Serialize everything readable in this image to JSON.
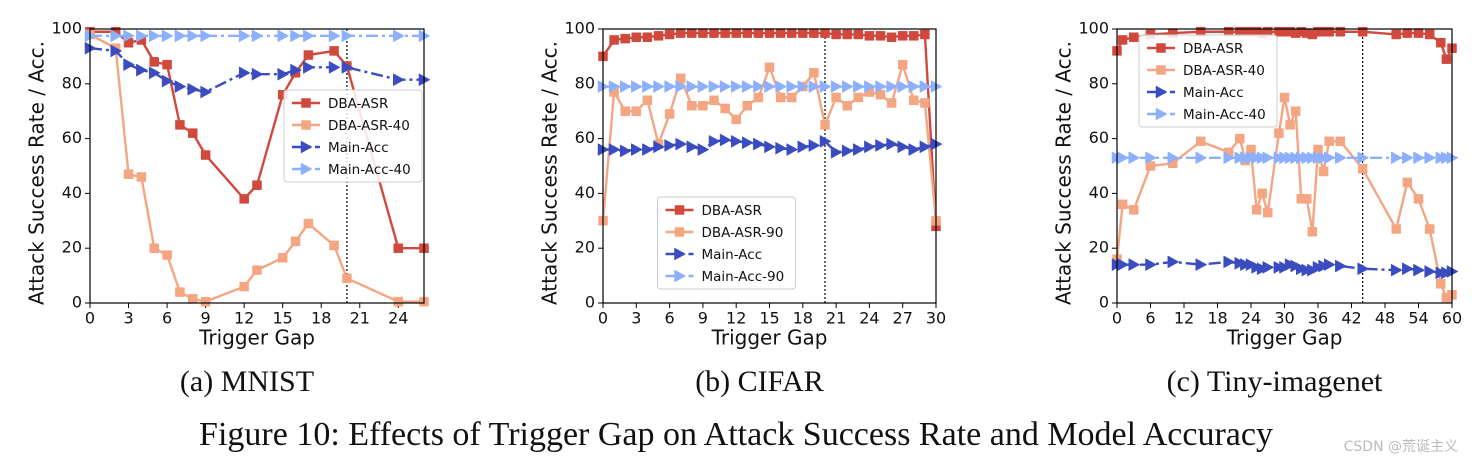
{
  "chart_data": [
    {
      "type": "line",
      "subtitle": "(a) MNIST",
      "xlabel": "Trigger Gap",
      "ylabel": "Attack Success Rate / Acc.",
      "x": [
        0,
        2,
        3,
        4,
        5,
        6,
        7,
        8,
        9,
        12,
        13,
        15,
        16,
        17,
        19,
        20,
        24,
        26
      ],
      "xlim": [
        0,
        26
      ],
      "xticks": [
        0,
        3,
        6,
        9,
        12,
        15,
        18,
        21,
        24
      ],
      "ylim": [
        0,
        100
      ],
      "yticks": [
        0,
        20,
        40,
        60,
        80,
        100
      ],
      "vline": 20,
      "legend": "center right",
      "series": [
        {
          "name": "DBA-ASR",
          "color": "#d1493c",
          "linestyle": "solid",
          "marker": "square",
          "values": [
            99,
            99,
            95,
            96,
            88,
            87,
            65,
            62,
            54,
            38,
            43,
            76,
            84,
            90.5,
            92,
            86.5,
            20,
            20
          ]
        },
        {
          "name": "DBA-ASR-40",
          "color": "#f4a582",
          "linestyle": "solid",
          "marker": "square",
          "values": [
            98,
            93,
            47,
            46,
            20,
            17.5,
            4,
            1.5,
            0.5,
            6,
            12,
            16.5,
            22.5,
            29,
            21,
            9,
            0.5,
            0.5
          ]
        },
        {
          "name": "Main-Acc",
          "color": "#3b4cc0",
          "linestyle": "dashdot",
          "marker": "triangle-right",
          "values": [
            93,
            92,
            87,
            85,
            84,
            81,
            79,
            78,
            77,
            84,
            83.5,
            83.5,
            85,
            86,
            86,
            86,
            81.5,
            81.5
          ]
        },
        {
          "name": "Main-Acc-40",
          "color": "#8db0fe",
          "linestyle": "dashdot",
          "marker": "triangle-right",
          "values": [
            97.5,
            97.5,
            97.5,
            97.5,
            97.5,
            97.5,
            97.5,
            97.5,
            97.5,
            97.5,
            97.5,
            97.5,
            97.5,
            97.5,
            97.5,
            97.5,
            97.5,
            97.5
          ]
        }
      ]
    },
    {
      "type": "line",
      "subtitle": "(b) CIFAR",
      "xlabel": "Trigger Gap",
      "ylabel": "Attack Success Rate / Acc.",
      "x": [
        0,
        1,
        2,
        3,
        4,
        5,
        6,
        7,
        8,
        9,
        10,
        11,
        12,
        13,
        14,
        15,
        16,
        17,
        18,
        19,
        20,
        21,
        22,
        23,
        24,
        25,
        26,
        27,
        28,
        29,
        30
      ],
      "xlim": [
        0,
        30
      ],
      "xticks": [
        0,
        3,
        6,
        9,
        12,
        15,
        18,
        21,
        24,
        27,
        30
      ],
      "ylim": [
        0,
        100
      ],
      "yticks": [
        0,
        20,
        40,
        60,
        80,
        100
      ],
      "vline": 20,
      "legend": "lower center",
      "series": [
        {
          "name": "DBA-ASR",
          "color": "#d1493c",
          "linestyle": "solid",
          "marker": "square",
          "values": [
            90,
            96,
            96.5,
            97,
            97,
            97.5,
            98,
            98.5,
            98.5,
            98.5,
            98.5,
            98.5,
            98.5,
            98.5,
            98.5,
            98.5,
            98.5,
            98.5,
            98.5,
            98.5,
            98.5,
            98,
            98,
            98,
            97.5,
            97.5,
            97,
            97.5,
            97.5,
            98,
            28
          ]
        },
        {
          "name": "DBA-ASR-90",
          "color": "#f4a582",
          "linestyle": "solid",
          "marker": "square",
          "values": [
            30,
            77,
            70,
            70,
            74,
            58,
            69,
            82,
            72,
            72,
            74,
            71,
            67,
            72,
            75,
            86,
            75,
            75,
            79,
            84,
            65,
            75,
            72,
            75,
            77,
            76,
            73,
            87,
            74,
            73,
            30
          ]
        },
        {
          "name": "Main-Acc",
          "color": "#3b4cc0",
          "linestyle": "dashdot",
          "marker": "triangle-right",
          "values": [
            56,
            56,
            55.5,
            56,
            56,
            57,
            57.5,
            58,
            57,
            56,
            59,
            59.5,
            59,
            58.5,
            58,
            57,
            56.5,
            56,
            57,
            57.5,
            59,
            55,
            55.5,
            56,
            57,
            57.5,
            58,
            57,
            56,
            57,
            58
          ]
        },
        {
          "name": "Main-Acc-90",
          "color": "#8db0fe",
          "linestyle": "dashdot",
          "marker": "triangle-right",
          "values": [
            79,
            79,
            79,
            79,
            79,
            79,
            79,
            79,
            79,
            79,
            79,
            79,
            79,
            79,
            79,
            79,
            79,
            79,
            79,
            79,
            79,
            79,
            79,
            79,
            79,
            79,
            79,
            79,
            79,
            79,
            79
          ]
        }
      ]
    },
    {
      "type": "line",
      "subtitle": "(c) Tiny-imagenet",
      "xlabel": "Trigger Gap",
      "ylabel": "Attack Success Rate / Acc.",
      "x": [
        0,
        1,
        3,
        6,
        10,
        15,
        20,
        22,
        23,
        24,
        25,
        26,
        27,
        29,
        30,
        31,
        32,
        33,
        34,
        35,
        36,
        37,
        38,
        40,
        44,
        50,
        52,
        54,
        56,
        58,
        59,
        60
      ],
      "xlim": [
        0,
        60
      ],
      "xticks": [
        0,
        6,
        12,
        18,
        24,
        30,
        36,
        42,
        48,
        54,
        60
      ],
      "ylim": [
        0,
        100
      ],
      "yticks": [
        0,
        20,
        40,
        60,
        80,
        100
      ],
      "vline": 44,
      "legend": "upper left",
      "series": [
        {
          "name": "DBA-ASR",
          "color": "#d1493c",
          "linestyle": "solid",
          "marker": "square",
          "values": [
            92,
            96,
            97,
            98,
            98.5,
            99,
            99,
            99,
            99,
            99,
            99,
            98.5,
            99,
            99,
            99,
            99,
            98.5,
            99,
            98.5,
            98,
            99,
            99,
            99,
            99,
            99,
            98,
            98.5,
            98.5,
            98,
            95,
            89,
            93
          ]
        },
        {
          "name": "DBA-ASR-40",
          "color": "#f4a582",
          "linestyle": "solid",
          "marker": "square",
          "values": [
            16,
            36,
            34,
            50,
            51,
            59,
            55,
            60,
            52,
            56,
            34,
            40,
            33,
            62,
            75,
            65,
            70,
            38,
            38,
            26,
            56,
            48,
            59,
            59,
            49,
            27,
            44,
            38,
            27,
            7,
            2,
            3
          ]
        },
        {
          "name": "Main-Acc",
          "color": "#3b4cc0",
          "linestyle": "dashdot",
          "marker": "triangle-right",
          "values": [
            14,
            14,
            14,
            14,
            15,
            14,
            15,
            14.5,
            14,
            14,
            13,
            12.5,
            13,
            13,
            13,
            14,
            13.5,
            12.5,
            12,
            12,
            13,
            13.5,
            14,
            13.5,
            12.5,
            12,
            12.5,
            12,
            11.5,
            11,
            11,
            11.5
          ]
        },
        {
          "name": "Main-Acc-40",
          "color": "#8db0fe",
          "linestyle": "dashdot",
          "marker": "triangle-right",
          "values": [
            53,
            53,
            53,
            53,
            53,
            53,
            53,
            53,
            53,
            53,
            53,
            53,
            53,
            53,
            53,
            53,
            53,
            53,
            53,
            53,
            53,
            53,
            53,
            53,
            53,
            53,
            53,
            53,
            53,
            53,
            53,
            53
          ]
        }
      ]
    }
  ],
  "caption": "Figure 10: Effects of Trigger Gap on Attack Success Rate and Model Accuracy",
  "watermark": "CSDN @荒诞主义"
}
